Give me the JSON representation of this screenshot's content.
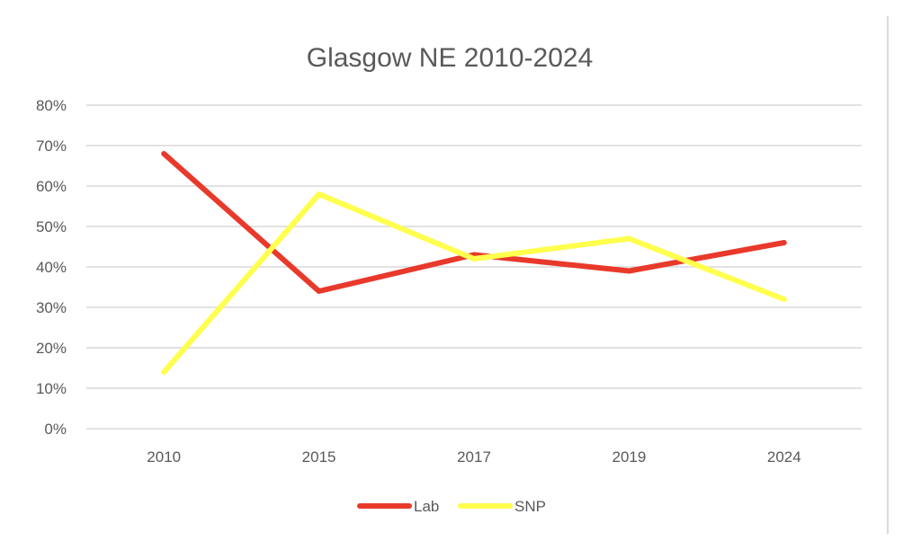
{
  "chart_data": {
    "type": "line",
    "title": "Glasgow NE 2010-2024",
    "xlabel": "",
    "ylabel": "",
    "categories": [
      "2010",
      "2015",
      "2017",
      "2019",
      "2024"
    ],
    "series": [
      {
        "name": "Lab",
        "color": "#e8392b",
        "values": [
          68,
          34,
          43,
          39,
          46
        ]
      },
      {
        "name": "SNP",
        "color": "#ffff4d",
        "values": [
          14,
          58,
          42,
          47,
          32
        ]
      }
    ],
    "ylim": [
      0,
      80
    ],
    "yticks": [
      0,
      10,
      20,
      30,
      40,
      50,
      60,
      70,
      80
    ],
    "ytick_suffix": "%",
    "grid": true,
    "legend_position": "bottom"
  }
}
